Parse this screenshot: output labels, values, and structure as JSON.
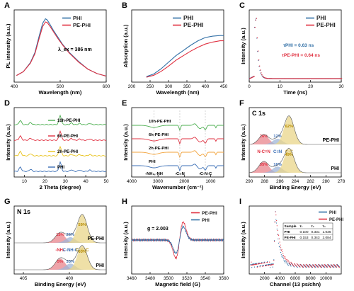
{
  "colors": {
    "phi": "#2f6ea5",
    "pephi": "#e03040",
    "green": "#4caf50",
    "orange": "#f2a23a",
    "yellow": "#e8c21a",
    "blue": "#3b6fb6",
    "peak_red": "#e8848c",
    "peak_blue": "#9fb6d8",
    "peak_yellow": "#e9d58a"
  },
  "chart_data": [
    {
      "panel": "A",
      "type": "line",
      "xlabel": "Wavelength (nm)",
      "ylabel": "PL intensity (a.u.)",
      "xlim": [
        400,
        600
      ],
      "xticks": [
        400,
        500,
        600
      ],
      "annotation": "λ_ex = 386 nm",
      "series": [
        {
          "name": "PHI",
          "color": "phi",
          "points": [
            [
              405,
              0.06
            ],
            [
              420,
              0.12
            ],
            [
              435,
              0.26
            ],
            [
              445,
              0.42
            ],
            [
              455,
              0.7
            ],
            [
              462,
              0.88
            ],
            [
              468,
              0.95
            ],
            [
              472,
              0.93
            ],
            [
              478,
              0.86
            ],
            [
              485,
              0.77
            ],
            [
              495,
              0.66
            ],
            [
              505,
              0.55
            ],
            [
              520,
              0.42
            ],
            [
              540,
              0.28
            ],
            [
              560,
              0.16
            ],
            [
              580,
              0.09
            ],
            [
              600,
              0.05
            ]
          ]
        },
        {
          "name": "PE-PHI",
          "color": "pephi",
          "points": [
            [
              405,
              0.06
            ],
            [
              420,
              0.12
            ],
            [
              435,
              0.25
            ],
            [
              445,
              0.4
            ],
            [
              455,
              0.66
            ],
            [
              462,
              0.83
            ],
            [
              468,
              0.9
            ],
            [
              472,
              0.89
            ],
            [
              478,
              0.83
            ],
            [
              485,
              0.75
            ],
            [
              495,
              0.64
            ],
            [
              505,
              0.54
            ],
            [
              520,
              0.41
            ],
            [
              540,
              0.27
            ],
            [
              560,
              0.16
            ],
            [
              580,
              0.09
            ],
            [
              600,
              0.05
            ]
          ]
        }
      ]
    },
    {
      "panel": "B",
      "type": "line",
      "xlabel": "Wavelength (nm)",
      "ylabel": "Absorption (a.u.)",
      "xlim": [
        200,
        450
      ],
      "xticks": [
        200,
        250,
        300,
        350,
        400,
        450
      ],
      "series": [
        {
          "name": "PHI",
          "color": "phi",
          "points": [
            [
              240,
              0.02
            ],
            [
              260,
              0.06
            ],
            [
              280,
              0.14
            ],
            [
              300,
              0.24
            ],
            [
              320,
              0.34
            ],
            [
              340,
              0.42
            ],
            [
              360,
              0.5
            ],
            [
              380,
              0.57
            ],
            [
              400,
              0.62
            ],
            [
              420,
              0.64
            ],
            [
              440,
              0.65
            ],
            [
              450,
              0.65
            ]
          ]
        },
        {
          "name": "PE-PHI",
          "color": "pephi",
          "points": [
            [
              240,
              0.01
            ],
            [
              260,
              0.04
            ],
            [
              280,
              0.1
            ],
            [
              300,
              0.18
            ],
            [
              320,
              0.27
            ],
            [
              340,
              0.34
            ],
            [
              360,
              0.41
            ],
            [
              380,
              0.47
            ],
            [
              400,
              0.52
            ],
            [
              420,
              0.55
            ],
            [
              440,
              0.57
            ],
            [
              450,
              0.57
            ]
          ]
        }
      ]
    },
    {
      "panel": "C",
      "type": "scatter",
      "xlabel": "Time (ns)",
      "ylabel": "Intensity (a.u.)",
      "xlim": [
        0,
        30
      ],
      "xticks": [
        0,
        10,
        20,
        30
      ],
      "annotations": [
        "τPHI = 0.63 ns",
        "τPE-PHI = 0.64 ns"
      ],
      "series": [
        {
          "name": "PHI",
          "color": "phi",
          "lifetime_ns": 0.63
        },
        {
          "name": "PE-PHI",
          "color": "pephi",
          "lifetime_ns": 0.64
        }
      ]
    },
    {
      "panel": "D",
      "type": "line",
      "xlabel": "2 Theta (degree)",
      "ylabel": "Intensity (a.u.)",
      "xlim": [
        5,
        50
      ],
      "xticks": [
        10,
        20,
        30,
        40,
        50
      ],
      "series": [
        {
          "name": "10h-PE-PHI",
          "color": "green",
          "offset": 3
        },
        {
          "name": "6h-PE-PHI",
          "color": "pephi",
          "offset": 2
        },
        {
          "name": "2h-PE-PHI",
          "color": "yellow",
          "offset": 1
        },
        {
          "name": "PHI",
          "color": "blue",
          "offset": 0
        }
      ]
    },
    {
      "panel": "E",
      "type": "line",
      "xlabel": "Wavenumber (cm⁻¹)",
      "ylabel": "Intensity (a.u.)",
      "xlim": [
        4000,
        500
      ],
      "xticks": [
        4000,
        3000,
        2000,
        1000
      ],
      "annotations": [
        "-NH₂,-NH",
        "-C≡N",
        "-C-N-C"
      ],
      "series": [
        {
          "name": "10h-PE-PHI",
          "color": "green",
          "offset": 3
        },
        {
          "name": "6h-PE-PHI",
          "color": "pephi",
          "offset": 2
        },
        {
          "name": "2h-PE-PHI",
          "color": "orange",
          "offset": 1
        },
        {
          "name": "PHI",
          "color": "blue",
          "offset": 0
        }
      ]
    },
    {
      "panel": "F",
      "type": "area",
      "title": "C 1s",
      "xlabel": "Binding Energy (eV)",
      "ylabel": "Intensity (a.u.)",
      "xlim": [
        290,
        278
      ],
      "xticks": [
        290,
        288,
        286,
        284,
        282,
        280,
        278
      ],
      "samples": [
        {
          "name": "PE-PHI",
          "peaks": [
            {
              "label": "N-C=N",
              "center": 288.1,
              "percent": "26%",
              "color": "peak_red"
            },
            {
              "label": "C≡N",
              "center": 286.3,
              "percent": "12%",
              "color": "peak_blue"
            },
            {
              "label": "C-C",
              "center": 284.8,
              "percent": "62%",
              "color": "peak_yellow"
            }
          ]
        },
        {
          "name": "PHI",
          "peaks": [
            {
              "label": "N-C=N",
              "center": 288.1,
              "percent": "35%",
              "color": "peak_red"
            },
            {
              "label": "C≡N",
              "center": 286.3,
              "percent": "16%",
              "color": "peak_blue"
            },
            {
              "label": "C-C",
              "center": 284.8,
              "percent": "49%",
              "color": "peak_yellow"
            }
          ]
        }
      ]
    },
    {
      "panel": "G",
      "type": "area",
      "title": "N 1s",
      "xlabel": "Binding Energy (eV)",
      "ylabel": "Intensity (a.u.)",
      "xlim": [
        406,
        396
      ],
      "xticks": [
        405,
        400
      ],
      "samples": [
        {
          "name": "PE-PHI",
          "peaks": [
            {
              "label": "-NH₂",
              "center": 401.0,
              "percent": "15%",
              "color": "peak_red"
            },
            {
              "label": "C-NH-C",
              "center": 399.9,
              "percent": "26%",
              "color": "peak_blue"
            },
            {
              "label": "C-N=C",
              "center": 398.6,
              "percent": "59%",
              "color": "peak_yellow"
            }
          ]
        },
        {
          "name": "PHI",
          "peaks": [
            {
              "label": "-NH₂",
              "center": 401.0,
              "percent": "5%",
              "color": "peak_red"
            },
            {
              "label": "C-NH-C",
              "center": 399.9,
              "percent": "35%",
              "color": "peak_blue"
            },
            {
              "label": "C-N=C",
              "center": 398.6,
              "percent": "60%",
              "color": "peak_yellow"
            }
          ]
        }
      ]
    },
    {
      "panel": "H",
      "type": "line",
      "xlabel": "Magnetic field (G)",
      "ylabel": "Intensity (a.u.)",
      "xlim": [
        3460,
        3560
      ],
      "xticks": [
        3460,
        3480,
        3500,
        3520,
        3540,
        3560
      ],
      "annotation": "g = 2.003",
      "series": [
        {
          "name": "PE-PHI",
          "color": "pephi"
        },
        {
          "name": "PHI",
          "color": "phi"
        }
      ]
    },
    {
      "panel": "I",
      "type": "scatter",
      "xlabel": "Channel (13 ps/chn)",
      "ylabel": "Intensity (a.u.)",
      "xlim": [
        0,
        12000
      ],
      "xticks": [
        2000,
        4000,
        6000,
        8000,
        10000
      ],
      "series": [
        {
          "name": "PHI",
          "color": "phi"
        },
        {
          "name": "PE-PHI",
          "color": "pephi"
        }
      ],
      "table": {
        "headers": [
          "Sample",
          "τ₁",
          "τ₂",
          "τ₃"
        ],
        "rows": [
          [
            "PHI",
            "0.100",
            "0.331",
            "1.036"
          ],
          [
            "PE-PHI",
            "0.153",
            "0.343",
            "2.084"
          ]
        ]
      }
    }
  ]
}
